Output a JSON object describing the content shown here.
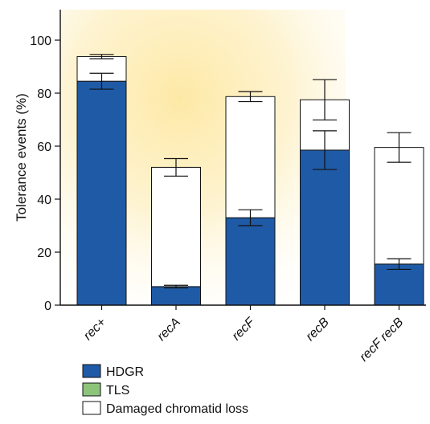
{
  "chart_data": {
    "type": "bar",
    "stacked": true,
    "ylabel": "Tolerance events (%)",
    "xlabel": "",
    "ylim": [
      0,
      110
    ],
    "yticks": [
      0,
      20,
      40,
      60,
      80,
      100
    ],
    "categories": [
      "rec+",
      "recA",
      "recF",
      "recB",
      "recF recB"
    ],
    "series": [
      {
        "name": "HDGR",
        "color": "#1f5aa6",
        "values": [
          84.5,
          7,
          33,
          58.5,
          15.5
        ],
        "errors": [
          3,
          0.5,
          3,
          7.3,
          2
        ]
      },
      {
        "name": "TLS",
        "color": "#8cc47a",
        "values": [
          0,
          0,
          0,
          0,
          0
        ],
        "errors": [
          0,
          0,
          0,
          0,
          0
        ]
      },
      {
        "name": "Damaged chromatid loss",
        "color": "#ffffff",
        "values": [
          9.3,
          45,
          45.7,
          19,
          44
        ],
        "errors": [
          0.8,
          3.3,
          1.9,
          7.6,
          5.6
        ]
      }
    ],
    "totals": [
      93.8,
      52,
      78.7,
      77.5,
      59.5
    ],
    "background": "radial yellow glow behind bars",
    "grid": false,
    "legend_position": "bottom-left"
  }
}
